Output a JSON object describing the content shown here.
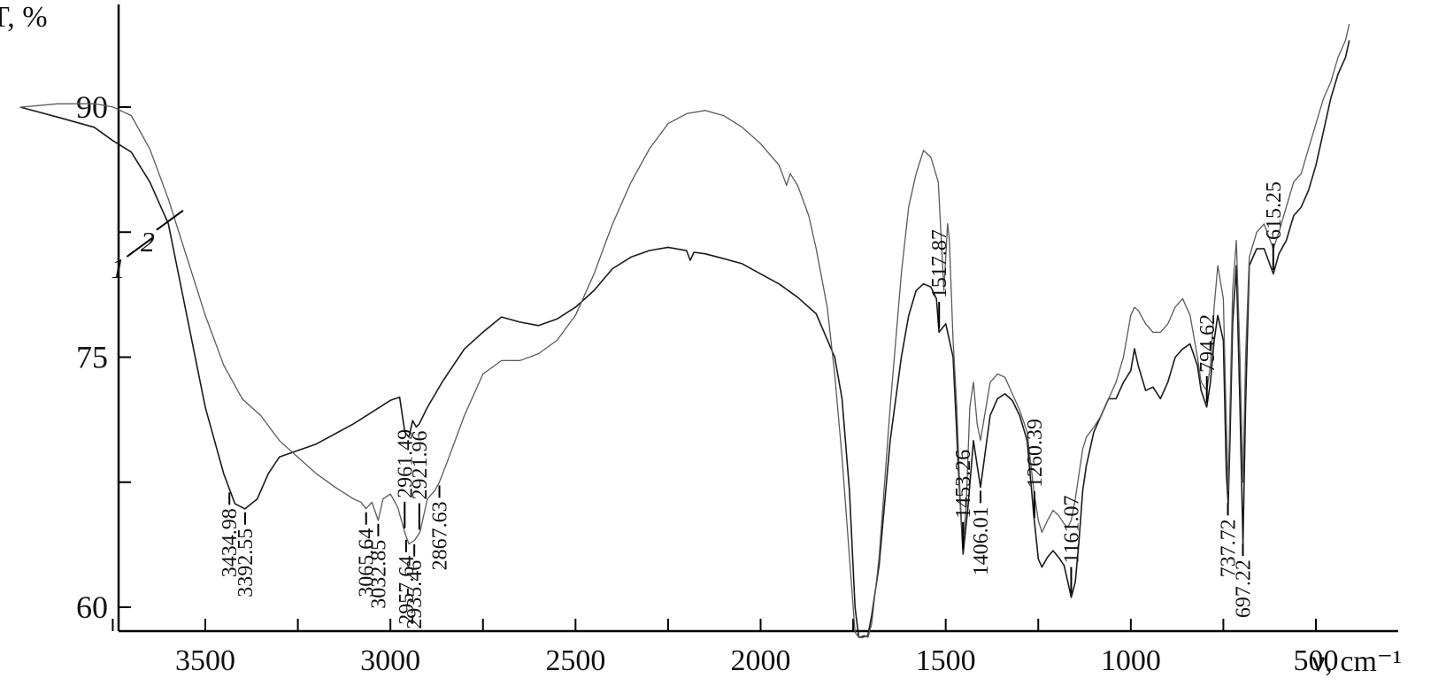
{
  "chart_data": {
    "type": "line",
    "ylabel": "T, %",
    "xlabel": "ν, cm⁻¹",
    "x_reversed": true,
    "xlim": [
      4000,
      400
    ],
    "ylim": [
      58,
      97
    ],
    "yticks": [
      60,
      75,
      90
    ],
    "xticks": [
      3500,
      3000,
      2500,
      2000,
      1500,
      1000,
      500
    ],
    "series": [
      {
        "name": "1",
        "stroke": "#1a1a1a",
        "points": [
          [
            4000,
            90
          ],
          [
            3900,
            89.4
          ],
          [
            3800,
            88.8
          ],
          [
            3750,
            88.0
          ],
          [
            3700,
            87.3
          ],
          [
            3650,
            85.5
          ],
          [
            3600,
            83.0
          ],
          [
            3550,
            77.5
          ],
          [
            3500,
            72.0
          ],
          [
            3450,
            68.0
          ],
          [
            3420,
            66.2
          ],
          [
            3393,
            65.9
          ],
          [
            3360,
            66.5
          ],
          [
            3330,
            68.0
          ],
          [
            3300,
            69.0
          ],
          [
            3200,
            69.8
          ],
          [
            3100,
            71.0
          ],
          [
            3000,
            72.4
          ],
          [
            2975,
            72.6
          ],
          [
            2961,
            70.5
          ],
          [
            2950,
            70.2
          ],
          [
            2940,
            71.2
          ],
          [
            2930,
            70.8
          ],
          [
            2922,
            71.0
          ],
          [
            2900,
            72.0
          ],
          [
            2860,
            73.5
          ],
          [
            2800,
            75.5
          ],
          [
            2750,
            76.5
          ],
          [
            2700,
            77.4
          ],
          [
            2650,
            77.1
          ],
          [
            2600,
            76.9
          ],
          [
            2550,
            77.3
          ],
          [
            2500,
            78.0
          ],
          [
            2450,
            79.0
          ],
          [
            2400,
            80.3
          ],
          [
            2350,
            81.0
          ],
          [
            2300,
            81.4
          ],
          [
            2250,
            81.6
          ],
          [
            2200,
            81.4
          ],
          [
            2190,
            80.8
          ],
          [
            2180,
            81.3
          ],
          [
            2150,
            81.2
          ],
          [
            2100,
            80.9
          ],
          [
            2050,
            80.6
          ],
          [
            2000,
            80.0
          ],
          [
            1950,
            79.4
          ],
          [
            1900,
            78.6
          ],
          [
            1850,
            77.6
          ],
          [
            1800,
            75.0
          ],
          [
            1780,
            72.5
          ],
          [
            1760,
            67.0
          ],
          [
            1745,
            60.0
          ],
          [
            1735,
            58.2
          ],
          [
            1725,
            58.2
          ],
          [
            1710,
            58.3
          ],
          [
            1700,
            59.5
          ],
          [
            1680,
            62.5
          ],
          [
            1650,
            70.0
          ],
          [
            1620,
            75.0
          ],
          [
            1600,
            77.5
          ],
          [
            1580,
            79.0
          ],
          [
            1560,
            79.4
          ],
          [
            1540,
            79.2
          ],
          [
            1525,
            78.5
          ],
          [
            1518,
            76.5
          ],
          [
            1500,
            77.0
          ],
          [
            1480,
            75.0
          ],
          [
            1465,
            68.0
          ],
          [
            1453,
            63.2
          ],
          [
            1440,
            66.0
          ],
          [
            1425,
            70.0
          ],
          [
            1415,
            68.5
          ],
          [
            1406,
            67.2
          ],
          [
            1395,
            69.0
          ],
          [
            1380,
            71.5
          ],
          [
            1360,
            72.5
          ],
          [
            1340,
            72.8
          ],
          [
            1320,
            72.4
          ],
          [
            1300,
            71.5
          ],
          [
            1280,
            70.0
          ],
          [
            1262,
            65.5
          ],
          [
            1250,
            62.9
          ],
          [
            1240,
            62.4
          ],
          [
            1225,
            63.0
          ],
          [
            1210,
            63.4
          ],
          [
            1195,
            63.0
          ],
          [
            1180,
            62.5
          ],
          [
            1165,
            61.0
          ],
          [
            1161,
            60.6
          ],
          [
            1150,
            61.5
          ],
          [
            1140,
            64.0
          ],
          [
            1130,
            67.0
          ],
          [
            1120,
            68.5
          ],
          [
            1100,
            70.5
          ],
          [
            1080,
            71.5
          ],
          [
            1060,
            72.5
          ],
          [
            1040,
            72.5
          ],
          [
            1020,
            73.5
          ],
          [
            1000,
            74.2
          ],
          [
            990,
            75.5
          ],
          [
            980,
            74.5
          ],
          [
            960,
            73.0
          ],
          [
            940,
            73.2
          ],
          [
            920,
            72.5
          ],
          [
            900,
            73.5
          ],
          [
            880,
            75.0
          ],
          [
            860,
            75.5
          ],
          [
            840,
            75.8
          ],
          [
            820,
            74.5
          ],
          [
            810,
            73.0
          ],
          [
            795,
            72.0
          ],
          [
            785,
            73.5
          ],
          [
            775,
            76.0
          ],
          [
            765,
            77.5
          ],
          [
            750,
            76.0
          ],
          [
            742,
            68.0
          ],
          [
            737,
            66.2
          ],
          [
            732,
            70.0
          ],
          [
            725,
            77.0
          ],
          [
            715,
            80.5
          ],
          [
            705,
            72.0
          ],
          [
            697,
            63.8
          ],
          [
            690,
            72.0
          ],
          [
            680,
            80.5
          ],
          [
            660,
            81.5
          ],
          [
            640,
            81.5
          ],
          [
            615,
            80.0
          ],
          [
            600,
            81.2
          ],
          [
            580,
            82.0
          ],
          [
            560,
            83.5
          ],
          [
            540,
            84.0
          ],
          [
            520,
            85.0
          ],
          [
            500,
            86.5
          ],
          [
            480,
            88.5
          ],
          [
            460,
            90.5
          ],
          [
            440,
            92.0
          ],
          [
            420,
            93.0
          ],
          [
            410,
            94.0
          ]
        ]
      },
      {
        "name": "2",
        "stroke": "#5a5a5a",
        "points": [
          [
            4000,
            90
          ],
          [
            3900,
            90.2
          ],
          [
            3800,
            90.2
          ],
          [
            3750,
            90.0
          ],
          [
            3700,
            89.5
          ],
          [
            3650,
            87.5
          ],
          [
            3600,
            84.5
          ],
          [
            3550,
            81.0
          ],
          [
            3500,
            77.5
          ],
          [
            3450,
            74.5
          ],
          [
            3400,
            72.5
          ],
          [
            3350,
            71.5
          ],
          [
            3300,
            70.0
          ],
          [
            3250,
            69.0
          ],
          [
            3200,
            68.0
          ],
          [
            3150,
            67.2
          ],
          [
            3100,
            66.5
          ],
          [
            3080,
            66.3
          ],
          [
            3066,
            65.9
          ],
          [
            3050,
            66.3
          ],
          [
            3033,
            65.2
          ],
          [
            3020,
            66.5
          ],
          [
            3000,
            66.8
          ],
          [
            2980,
            66.0
          ],
          [
            2960,
            64.4
          ],
          [
            2950,
            63.8
          ],
          [
            2935,
            64.0
          ],
          [
            2920,
            64.5
          ],
          [
            2900,
            66.5
          ],
          [
            2880,
            67.0
          ],
          [
            2868,
            67.5
          ],
          [
            2850,
            68.5
          ],
          [
            2800,
            71.5
          ],
          [
            2750,
            74.0
          ],
          [
            2700,
            74.8
          ],
          [
            2650,
            74.8
          ],
          [
            2600,
            75.2
          ],
          [
            2550,
            76.0
          ],
          [
            2500,
            77.5
          ],
          [
            2450,
            80.0
          ],
          [
            2400,
            83.0
          ],
          [
            2350,
            85.5
          ],
          [
            2300,
            87.5
          ],
          [
            2250,
            89.0
          ],
          [
            2200,
            89.6
          ],
          [
            2150,
            89.8
          ],
          [
            2100,
            89.5
          ],
          [
            2050,
            88.8
          ],
          [
            2000,
            87.8
          ],
          [
            1950,
            86.5
          ],
          [
            1930,
            85.3
          ],
          [
            1920,
            86.0
          ],
          [
            1900,
            85.3
          ],
          [
            1870,
            83.5
          ],
          [
            1850,
            81.5
          ],
          [
            1820,
            78.0
          ],
          [
            1800,
            74.0
          ],
          [
            1780,
            69.0
          ],
          [
            1760,
            63.0
          ],
          [
            1745,
            58.5
          ],
          [
            1735,
            58.2
          ],
          [
            1720,
            58.3
          ],
          [
            1710,
            58.2
          ],
          [
            1700,
            59.0
          ],
          [
            1680,
            63.0
          ],
          [
            1650,
            72.0
          ],
          [
            1620,
            80.0
          ],
          [
            1600,
            84.0
          ],
          [
            1580,
            86.0
          ],
          [
            1560,
            87.4
          ],
          [
            1540,
            87.0
          ],
          [
            1520,
            85.5
          ],
          [
            1505,
            79.0
          ],
          [
            1495,
            83.0
          ],
          [
            1490,
            82.0
          ],
          [
            1480,
            76.0
          ],
          [
            1470,
            72.0
          ],
          [
            1460,
            66.0
          ],
          [
            1453,
            63.8
          ],
          [
            1445,
            66.0
          ],
          [
            1435,
            72.0
          ],
          [
            1425,
            73.5
          ],
          [
            1415,
            71.0
          ],
          [
            1406,
            70.0
          ],
          [
            1395,
            71.5
          ],
          [
            1380,
            73.5
          ],
          [
            1360,
            74.0
          ],
          [
            1340,
            73.8
          ],
          [
            1320,
            72.8
          ],
          [
            1300,
            71.8
          ],
          [
            1280,
            70.5
          ],
          [
            1262,
            67.0
          ],
          [
            1250,
            65.2
          ],
          [
            1240,
            64.5
          ],
          [
            1225,
            65.2
          ],
          [
            1210,
            65.8
          ],
          [
            1195,
            65.5
          ],
          [
            1180,
            65.0
          ],
          [
            1170,
            64.8
          ],
          [
            1161,
            65.2
          ],
          [
            1150,
            66.5
          ],
          [
            1140,
            68.0
          ],
          [
            1130,
            69.5
          ],
          [
            1120,
            70.2
          ],
          [
            1100,
            70.8
          ],
          [
            1080,
            71.5
          ],
          [
            1060,
            72.5
          ],
          [
            1040,
            73.5
          ],
          [
            1020,
            75.0
          ],
          [
            1000,
            77.5
          ],
          [
            990,
            78.0
          ],
          [
            980,
            77.8
          ],
          [
            960,
            77.0
          ],
          [
            940,
            76.5
          ],
          [
            920,
            76.5
          ],
          [
            900,
            77.0
          ],
          [
            880,
            78.0
          ],
          [
            860,
            78.5
          ],
          [
            840,
            77.5
          ],
          [
            820,
            75.0
          ],
          [
            810,
            73.5
          ],
          [
            795,
            73.0
          ],
          [
            785,
            74.5
          ],
          [
            775,
            78.0
          ],
          [
            765,
            80.5
          ],
          [
            750,
            78.5
          ],
          [
            742,
            71.0
          ],
          [
            737,
            67.0
          ],
          [
            732,
            72.0
          ],
          [
            725,
            79.0
          ],
          [
            715,
            82.0
          ],
          [
            705,
            75.0
          ],
          [
            697,
            67.5
          ],
          [
            690,
            75.0
          ],
          [
            680,
            81.0
          ],
          [
            660,
            82.5
          ],
          [
            640,
            83.0
          ],
          [
            615,
            81.5
          ],
          [
            600,
            82.5
          ],
          [
            580,
            84.0
          ],
          [
            560,
            85.5
          ],
          [
            540,
            86.0
          ],
          [
            520,
            87.5
          ],
          [
            500,
            89.0
          ],
          [
            480,
            90.5
          ],
          [
            460,
            91.5
          ],
          [
            440,
            93.0
          ],
          [
            420,
            94.0
          ],
          [
            410,
            95.0
          ]
        ]
      }
    ],
    "curve_labels": [
      {
        "text": "1",
        "x": 3640,
        "y": 82.2
      },
      {
        "text": "2",
        "x": 3560,
        "y": 83.8
      }
    ],
    "annotations": [
      {
        "text": "3434.98",
        "wn": 3434.98,
        "dir": "down"
      },
      {
        "text": "3392.55",
        "wn": 3392.55,
        "dir": "down"
      },
      {
        "text": "3065.64",
        "wn": 3065.64,
        "dir": "down"
      },
      {
        "text": "3032.85",
        "wn": 3032.85,
        "dir": "down"
      },
      {
        "text": "2957.64",
        "wn": 2957.64,
        "dir": "down"
      },
      {
        "text": "2935.46",
        "wn": 2935.46,
        "dir": "down"
      },
      {
        "text": "2867.63",
        "wn": 2867.63,
        "dir": "down"
      },
      {
        "text": "2961.49",
        "wn": 2961.49,
        "dir": "up"
      },
      {
        "text": "2921.96",
        "wn": 2921.96,
        "dir": "up"
      },
      {
        "text": "1517.87",
        "wn": 1517.87,
        "dir": "up"
      },
      {
        "text": "1453.26",
        "wn": 1453.26,
        "dir": "up"
      },
      {
        "text": "1406.01",
        "wn": 1406.01,
        "dir": "down"
      },
      {
        "text": "1260.39",
        "wn": 1260.39,
        "dir": "up"
      },
      {
        "text": "1161.07",
        "wn": 1161.07,
        "dir": "up"
      },
      {
        "text": "794.62",
        "wn": 794.62,
        "dir": "up"
      },
      {
        "text": "737.72",
        "wn": 737.72,
        "dir": "down"
      },
      {
        "text": "697.22",
        "wn": 697.22,
        "dir": "down"
      },
      {
        "text": "615.25",
        "wn": 615.25,
        "dir": "up"
      }
    ]
  }
}
